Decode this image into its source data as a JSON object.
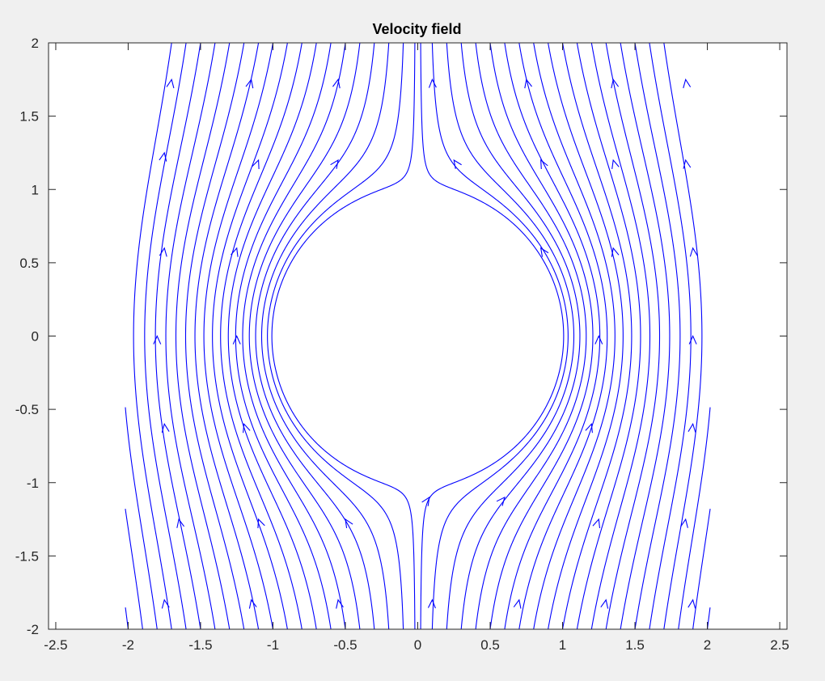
{
  "chart_data": {
    "type": "streamline",
    "title": "Velocity field",
    "xlabel": "",
    "ylabel": "",
    "xlim": [
      -2.55,
      2.55
    ],
    "ylim": [
      -2,
      2
    ],
    "xticks": [
      -2.5,
      -2,
      -1.5,
      -1,
      -0.5,
      0,
      0.5,
      1,
      1.5,
      2,
      2.5
    ],
    "xtick_labels": [
      "-2.5",
      "-2",
      "-1.5",
      "-1",
      "-0.5",
      "0",
      "0.5",
      "1",
      "1.5",
      "2",
      "2.5"
    ],
    "yticks": [
      -2,
      -1.5,
      -1,
      -0.5,
      0,
      0.5,
      1,
      1.5,
      2
    ],
    "ytick_labels": [
      "-2",
      "-1.5",
      "-1",
      "-0.5",
      "0",
      "0.5",
      "1",
      "1.5",
      "2"
    ],
    "grid": false,
    "domain": {
      "x": [
        -2,
        2
      ],
      "y": [
        -2,
        2
      ]
    },
    "obstacle": {
      "shape": "circle",
      "center": [
        0,
        0
      ],
      "radius": 1
    },
    "flow_direction": "up",
    "streamline_start_x": [
      -2.0,
      -1.9,
      -1.8,
      -1.7,
      -1.6,
      -1.5,
      -1.4,
      -1.3,
      -1.2,
      -1.1,
      -1.0,
      -0.9,
      -0.8,
      -0.7,
      -0.6,
      -0.5,
      -0.4,
      -0.3,
      -0.2,
      -0.1,
      -0.02,
      0.02,
      0.1,
      0.2,
      0.3,
      0.4,
      0.5,
      0.6,
      0.7,
      0.8,
      0.9,
      1.0,
      1.1,
      1.2,
      1.3,
      1.4,
      1.5,
      1.6,
      1.7,
      1.8,
      1.9,
      2.0
    ],
    "arrow_points": [
      [
        -1.75,
        -1.8
      ],
      [
        -1.15,
        -1.8
      ],
      [
        -0.55,
        -1.8
      ],
      [
        0.1,
        -1.8
      ],
      [
        0.7,
        -1.8
      ],
      [
        1.3,
        -1.8
      ],
      [
        1.9,
        -1.8
      ],
      [
        -1.65,
        -1.25
      ],
      [
        -1.1,
        -1.25
      ],
      [
        -0.5,
        -1.25
      ],
      [
        0.08,
        -1.1
      ],
      [
        0.6,
        -1.1
      ],
      [
        1.25,
        -1.25
      ],
      [
        1.85,
        -1.25
      ],
      [
        -1.75,
        -0.6
      ],
      [
        -1.2,
        -0.6
      ],
      [
        1.2,
        -0.6
      ],
      [
        1.9,
        -0.6
      ],
      [
        -1.8,
        0
      ],
      [
        -1.25,
        0
      ],
      [
        1.25,
        0
      ],
      [
        1.9,
        0
      ],
      [
        -1.75,
        0.6
      ],
      [
        -1.25,
        0.6
      ],
      [
        0.85,
        0.6
      ],
      [
        1.35,
        0.6
      ],
      [
        1.9,
        0.6
      ],
      [
        -1.75,
        1.25
      ],
      [
        -1.1,
        1.2
      ],
      [
        -0.55,
        1.2
      ],
      [
        0.25,
        1.2
      ],
      [
        0.85,
        1.2
      ],
      [
        1.35,
        1.2
      ],
      [
        1.85,
        1.2
      ],
      [
        -1.7,
        1.75
      ],
      [
        -1.15,
        1.75
      ],
      [
        -0.55,
        1.75
      ],
      [
        0.1,
        1.75
      ],
      [
        0.75,
        1.75
      ],
      [
        1.35,
        1.75
      ],
      [
        1.85,
        1.75
      ]
    ],
    "colors": {
      "streamline": "#0000ff",
      "axes_bg": "#ffffff",
      "figure_bg": "#f0f0f0",
      "axis": "#262626"
    }
  }
}
